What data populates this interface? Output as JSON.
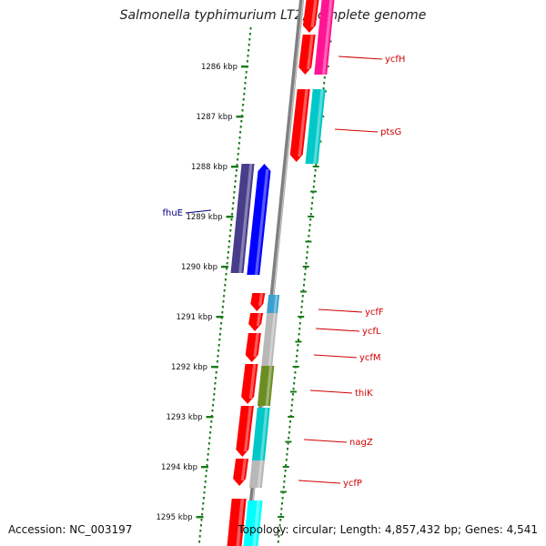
{
  "title": "Salmonella typhimurium LT2, complete genome",
  "accession": "Accession: NC_003197",
  "topology": "Topology: circular; Length: 4,857,432 bp; Genes: 4,541",
  "colors": {
    "backbone": "#808080",
    "ruler": "#1a7a1a",
    "forward_red": "#ff0000",
    "cyan": "#00c8c8",
    "magenta": "#ff1493",
    "grey": "#b8b8b8",
    "olive": "#6b8e23",
    "navy": "#483d8b",
    "blue": "#0000ff",
    "label_red": "#d00000",
    "label_blue": "#000080"
  },
  "ruler": {
    "ticks": [
      {
        "label": "1286 kbp",
        "kbp": 1286
      },
      {
        "label": "1287 kbp",
        "kbp": 1287
      },
      {
        "label": "1288 kbp",
        "kbp": 1288
      },
      {
        "label": "1289 kbp",
        "kbp": 1289
      },
      {
        "label": "1290 kbp",
        "kbp": 1290
      },
      {
        "label": "1291 kbp",
        "kbp": 1291
      },
      {
        "label": "1292 kbp",
        "kbp": 1292
      },
      {
        "label": "1293 kbp",
        "kbp": 1293
      },
      {
        "label": "1294 kbp",
        "kbp": 1294
      },
      {
        "label": "1295 kbp",
        "kbp": 1295
      }
    ]
  },
  "gene_labels": [
    {
      "name": "ycfH",
      "strand": "forward"
    },
    {
      "name": "ptsG",
      "strand": "forward"
    },
    {
      "name": "fhuE",
      "strand": "reverse"
    },
    {
      "name": "ycfF",
      "strand": "forward"
    },
    {
      "name": "ycfL",
      "strand": "forward"
    },
    {
      "name": "ycfM",
      "strand": "forward"
    },
    {
      "name": "thiK",
      "strand": "forward"
    },
    {
      "name": "nagZ",
      "strand": "forward"
    },
    {
      "name": "ycfP",
      "strand": "forward"
    }
  ]
}
